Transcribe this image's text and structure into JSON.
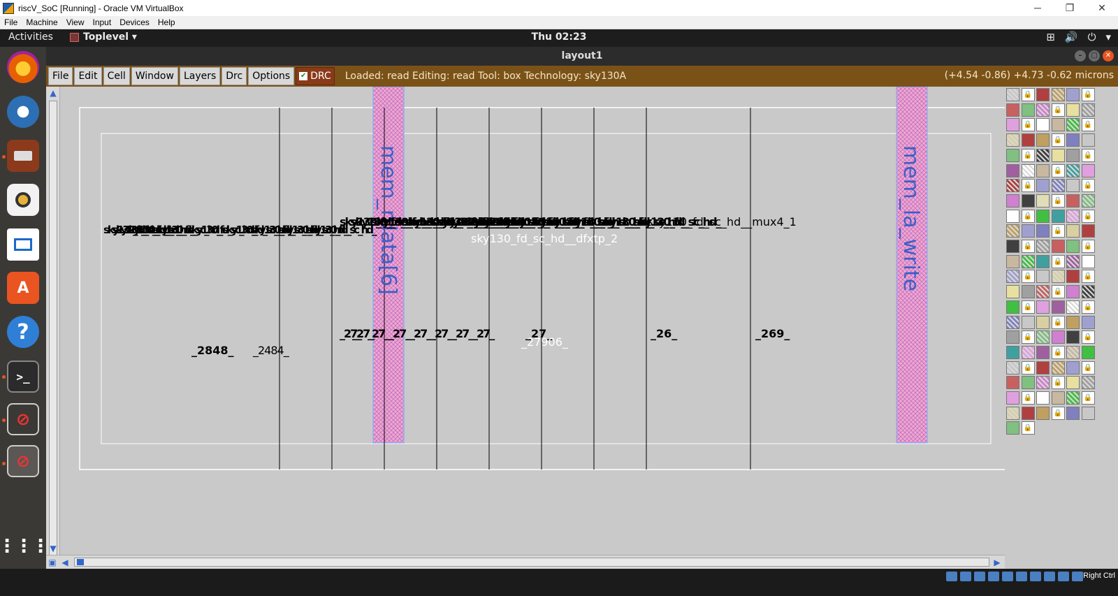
{
  "host_window": {
    "title": "riscV_SoC [Running] - Oracle VM VirtualBox",
    "minimize": "─",
    "restore": "❐",
    "close": "✕"
  },
  "vbox_menu": [
    "File",
    "Machine",
    "View",
    "Input",
    "Devices",
    "Help"
  ],
  "gnome_bar": {
    "activities": "Activities",
    "app_menu": "Toplevel ▾",
    "clock": "Thu 02:23",
    "tray": [
      "⊞",
      "🔊",
      "⏻",
      "▾"
    ]
  },
  "dock": {
    "items": [
      {
        "name": "firefox",
        "glyph": "",
        "color": "#e66000"
      },
      {
        "name": "thunderbird",
        "glyph": "",
        "color": "#2c6fb5"
      },
      {
        "name": "files",
        "glyph": "",
        "color": "#b04e2c"
      },
      {
        "name": "rhythmbox",
        "glyph": "",
        "color": "#e8b23a"
      },
      {
        "name": "writer",
        "glyph": "",
        "color": "#1b6ac9"
      },
      {
        "name": "software",
        "glyph": "A",
        "color": "#e95420"
      },
      {
        "name": "help",
        "glyph": "?",
        "color": "#2f7fd6"
      },
      {
        "name": "terminal",
        "glyph": ">_",
        "color": "#2b2b2b"
      },
      {
        "name": "magic-1",
        "glyph": "⊘",
        "color": "#444"
      },
      {
        "name": "magic-2",
        "glyph": "⊘",
        "color": "#555"
      }
    ],
    "apps_grid": "⋮⋮⋮"
  },
  "magic": {
    "window_title": "layout1",
    "menus": [
      "File",
      "Edit",
      "Cell",
      "Window",
      "Layers",
      "Drc",
      "Options"
    ],
    "drc_label": "DRC",
    "status": "Loaded: read Editing: read Tool: box  Technology: sky130A",
    "coords": "(+4.54 -0.86) +4.73 -0.62 microns"
  },
  "layout": {
    "cell_labels": {
      "mem_rdata": "mem_rdata[6]",
      "mem_la_write": "mem_la_write",
      "dfxtp": "sky130_fd_sc_hd__dfxtp_2",
      "mux4": "sky130_fd_sc_hd__mux4_1",
      "left_cluster": "sky130_fd_sc_hd_",
      "mid_top_cluster": "sky130_fd_sc_hd__sky130_fd_sc_hd_",
      "net_27906": "_27906_",
      "net_248": "_2484_",
      "net_2848": "_2848_",
      "net_26": "_26_",
      "net_27": "_27_",
      "net_269": "_269_"
    }
  },
  "statusbar": {
    "host_key": "Right Ctrl"
  }
}
